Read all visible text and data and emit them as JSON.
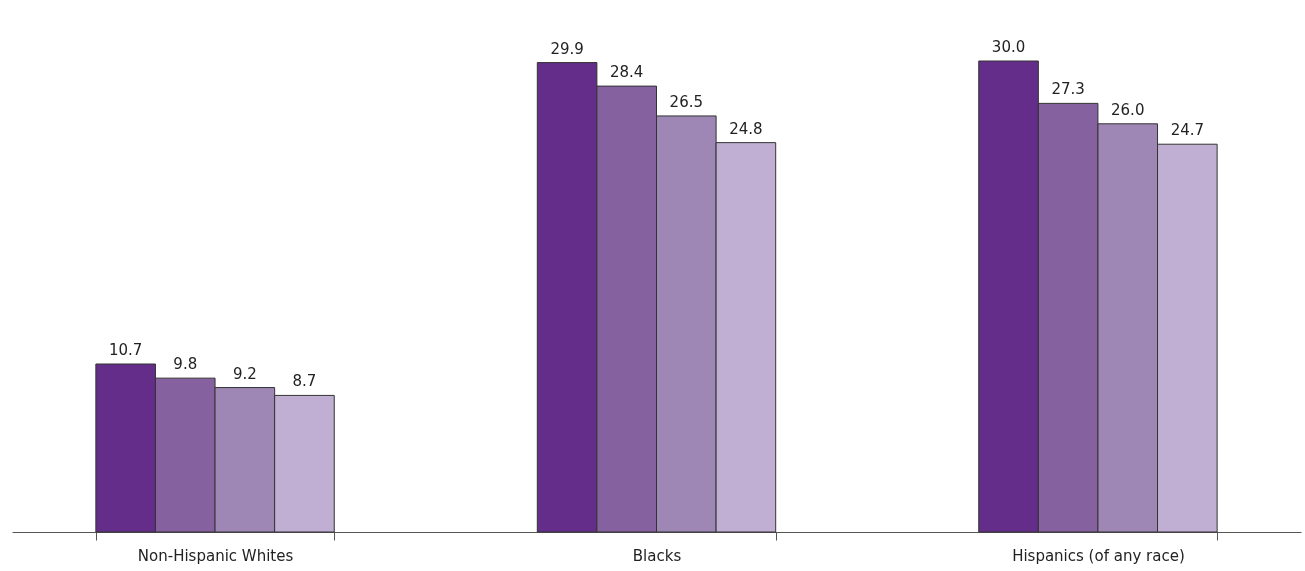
{
  "chart_data": {
    "type": "bar",
    "categories": [
      "Non-Hispanic Whites",
      "Blacks",
      "Hispanics (of any race)"
    ],
    "series": [
      {
        "color": "#642d8a",
        "values": [
          10.7,
          29.9,
          30.0
        ],
        "value_labels": [
          "10.7",
          "29.9",
          "30.0"
        ]
      },
      {
        "color": "#8561a0",
        "values": [
          9.8,
          28.4,
          27.3
        ],
        "value_labels": [
          "9.8",
          "28.4",
          "27.3"
        ]
      },
      {
        "color": "#9e87b5",
        "values": [
          9.2,
          26.5,
          26.0
        ],
        "value_labels": [
          "9.2",
          "26.5",
          "26.0"
        ]
      },
      {
        "color": "#c0afd3",
        "values": [
          8.7,
          24.8,
          24.7
        ],
        "value_labels": [
          "8.7",
          "24.8",
          "24.7"
        ]
      }
    ],
    "legend": false,
    "grid": false,
    "tick_labels": "x"
  }
}
